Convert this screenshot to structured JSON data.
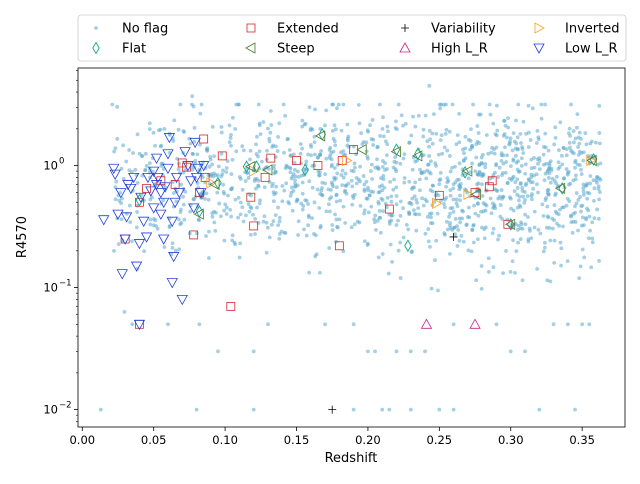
{
  "chart_data": {
    "type": "scatter",
    "title": "",
    "xlabel": "Redshift",
    "ylabel": "R4570",
    "xlim": [
      -0.003,
      0.38
    ],
    "ylim": [
      0.0072,
      6.3
    ],
    "yscale": "log",
    "x_ticks": [
      0.0,
      0.05,
      0.1,
      0.15,
      0.2,
      0.25,
      0.3,
      0.35
    ],
    "x_tick_labels": [
      "0.00",
      "0.05",
      "0.10",
      "0.15",
      "0.20",
      "0.25",
      "0.30",
      "0.35"
    ],
    "y_ticks": [
      0.01,
      0.1,
      1
    ],
    "y_tick_labels": [
      "10",
      "10",
      "10"
    ],
    "y_tick_exponents": [
      "−2",
      "−1",
      "0"
    ],
    "legend": {
      "placement": "top-center",
      "ncol": 4,
      "entries": [
        {
          "label": "No flag",
          "marker": "dot",
          "color": "#5aa7cd"
        },
        {
          "label": "Extended",
          "marker": "square",
          "color": "#d62728"
        },
        {
          "label": "Variability",
          "marker": "plus",
          "color": "#000000"
        },
        {
          "label": "Inverted",
          "marker": "triangle-right",
          "color": "#ff9f1a"
        },
        {
          "label": "Flat",
          "marker": "diamond",
          "color": "#17a68f"
        },
        {
          "label": "Steep",
          "marker": "triangle-left",
          "color": "#4c7a2a"
        },
        {
          "label": "High L_R",
          "marker": "triangle-up",
          "color": "#c2268f"
        },
        {
          "label": "Low L_R",
          "marker": "triangle-down",
          "color": "#2040d8"
        }
      ]
    },
    "series": [
      {
        "name": "No flag",
        "marker": "dot",
        "color": "#5aa7cd",
        "random_cloud": {
          "count": 1400,
          "x_range": [
            0.02,
            0.363
          ],
          "median": 0.7,
          "sigma_dex": 0.3
        },
        "points": [
          [
            0.013,
            0.01
          ],
          [
            0.077,
            3.7
          ],
          [
            0.243,
            4.5
          ],
          [
            0.08,
            0.01
          ],
          [
            0.12,
            0.01
          ],
          [
            0.19,
            0.01
          ],
          [
            0.21,
            0.01
          ],
          [
            0.215,
            0.01
          ],
          [
            0.23,
            0.01
          ],
          [
            0.25,
            0.01
          ],
          [
            0.26,
            0.01
          ],
          [
            0.32,
            0.01
          ],
          [
            0.345,
            0.01
          ],
          [
            0.095,
            0.03
          ],
          [
            0.12,
            0.03
          ],
          [
            0.2,
            0.03
          ],
          [
            0.205,
            0.03
          ],
          [
            0.22,
            0.03
          ],
          [
            0.23,
            0.03
          ],
          [
            0.24,
            0.03
          ],
          [
            0.3,
            0.03
          ],
          [
            0.31,
            0.03
          ],
          [
            0.035,
            0.05
          ],
          [
            0.06,
            0.05
          ],
          [
            0.082,
            0.05
          ],
          [
            0.13,
            0.05
          ],
          [
            0.17,
            0.05
          ],
          [
            0.19,
            0.05
          ],
          [
            0.26,
            0.05
          ],
          [
            0.29,
            0.05
          ],
          [
            0.33,
            0.05
          ],
          [
            0.34,
            0.05
          ],
          [
            0.35,
            0.05
          ],
          [
            0.355,
            0.05
          ]
        ]
      },
      {
        "name": "Extended",
        "marker": "square",
        "color": "#d62728",
        "points": [
          [
            0.03,
            0.25
          ],
          [
            0.04,
            0.5
          ],
          [
            0.045,
            0.65
          ],
          [
            0.055,
            0.75
          ],
          [
            0.065,
            0.7
          ],
          [
            0.07,
            1.05
          ],
          [
            0.073,
            0.97
          ],
          [
            0.078,
            0.27
          ],
          [
            0.082,
            0.6
          ],
          [
            0.085,
            1.65
          ],
          [
            0.086,
            0.8
          ],
          [
            0.098,
            1.2
          ],
          [
            0.104,
            0.07
          ],
          [
            0.118,
            0.55
          ],
          [
            0.12,
            0.32
          ],
          [
            0.128,
            0.8
          ],
          [
            0.132,
            1.15
          ],
          [
            0.15,
            1.1
          ],
          [
            0.165,
            1.0
          ],
          [
            0.18,
            0.22
          ],
          [
            0.182,
            1.1
          ],
          [
            0.19,
            1.35
          ],
          [
            0.215,
            0.44
          ],
          [
            0.25,
            0.57
          ],
          [
            0.275,
            0.6
          ],
          [
            0.285,
            0.67
          ],
          [
            0.287,
            0.75
          ],
          [
            0.298,
            0.33
          ],
          [
            0.04,
            0.05
          ]
        ]
      },
      {
        "name": "Variability",
        "marker": "plus",
        "color": "#000000",
        "points": [
          [
            0.175,
            0.01
          ],
          [
            0.26,
            0.26
          ]
        ]
      },
      {
        "name": "Inverted",
        "marker": "triangle-right",
        "color": "#ff9f1a",
        "points": [
          [
            0.09,
            0.72
          ],
          [
            0.12,
            0.9
          ],
          [
            0.185,
            1.1
          ],
          [
            0.248,
            0.49
          ],
          [
            0.27,
            0.58
          ],
          [
            0.356,
            1.1
          ]
        ]
      },
      {
        "name": "Flat",
        "marker": "diamond",
        "color": "#17a68f",
        "points": [
          [
            0.04,
            0.52
          ],
          [
            0.082,
            0.42
          ],
          [
            0.095,
            0.72
          ],
          [
            0.115,
            0.98
          ],
          [
            0.122,
            0.98
          ],
          [
            0.156,
            0.92
          ],
          [
            0.168,
            1.8
          ],
          [
            0.22,
            1.35
          ],
          [
            0.228,
            0.22
          ],
          [
            0.235,
            1.25
          ],
          [
            0.268,
            0.88
          ],
          [
            0.3,
            0.33
          ],
          [
            0.336,
            0.65
          ],
          [
            0.358,
            1.12
          ]
        ]
      },
      {
        "name": "Steep",
        "marker": "triangle-left",
        "color": "#4c7a2a",
        "points": [
          [
            0.082,
            0.4
          ],
          [
            0.093,
            0.7
          ],
          [
            0.118,
            0.98
          ],
          [
            0.13,
            0.92
          ],
          [
            0.167,
            1.75
          ],
          [
            0.196,
            1.35
          ],
          [
            0.22,
            1.3
          ],
          [
            0.235,
            1.2
          ],
          [
            0.27,
            0.9
          ],
          [
            0.276,
            0.58
          ],
          [
            0.3,
            0.33
          ],
          [
            0.335,
            0.65
          ],
          [
            0.357,
            1.1
          ]
        ]
      },
      {
        "name": "High L_R",
        "marker": "triangle-up",
        "color": "#c2268f",
        "points": [
          [
            0.241,
            0.05
          ],
          [
            0.275,
            0.05
          ]
        ]
      },
      {
        "name": "Low L_R",
        "marker": "triangle-down",
        "color": "#2040d8",
        "points": [
          [
            0.015,
            0.36
          ],
          [
            0.022,
            0.95
          ],
          [
            0.023,
            0.85
          ],
          [
            0.025,
            0.4
          ],
          [
            0.027,
            0.6
          ],
          [
            0.028,
            0.13
          ],
          [
            0.03,
            0.25
          ],
          [
            0.031,
            0.38
          ],
          [
            0.032,
            0.7
          ],
          [
            0.034,
            0.65
          ],
          [
            0.036,
            0.8
          ],
          [
            0.038,
            0.15
          ],
          [
            0.04,
            0.23
          ],
          [
            0.04,
            0.05
          ],
          [
            0.041,
            0.55
          ],
          [
            0.043,
            0.35
          ],
          [
            0.045,
            0.26
          ],
          [
            0.046,
            0.8
          ],
          [
            0.048,
            0.62
          ],
          [
            0.05,
            0.9
          ],
          [
            0.05,
            0.45
          ],
          [
            0.052,
            0.7
          ],
          [
            0.052,
            1.15
          ],
          [
            0.053,
            0.8
          ],
          [
            0.055,
            0.4
          ],
          [
            0.055,
            0.6
          ],
          [
            0.057,
            0.5
          ],
          [
            0.057,
            0.25
          ],
          [
            0.058,
            0.67
          ],
          [
            0.06,
            1.25
          ],
          [
            0.06,
            0.95
          ],
          [
            0.061,
            1.7
          ],
          [
            0.063,
            0.35
          ],
          [
            0.063,
            0.11
          ],
          [
            0.064,
            0.18
          ],
          [
            0.065,
            0.5
          ],
          [
            0.066,
            0.8
          ],
          [
            0.068,
            0.6
          ],
          [
            0.07,
            0.08
          ],
          [
            0.072,
            1.3
          ],
          [
            0.074,
            1.0
          ],
          [
            0.076,
            0.75
          ],
          [
            0.078,
            0.45
          ],
          [
            0.079,
            1.55
          ],
          [
            0.08,
            0.8
          ],
          [
            0.081,
            0.95
          ],
          [
            0.083,
            0.6
          ],
          [
            0.085,
            1.0
          ]
        ]
      }
    ]
  }
}
